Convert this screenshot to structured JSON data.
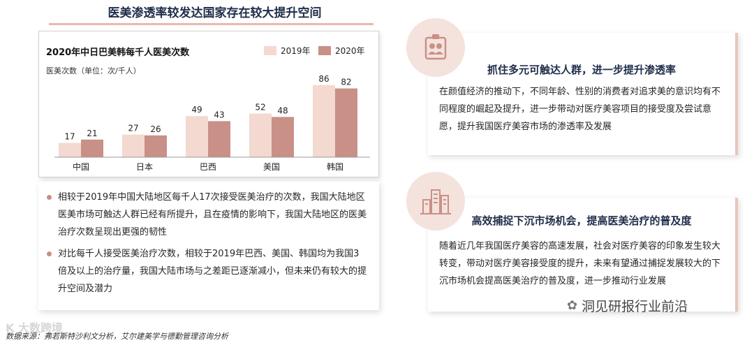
{
  "page": {
    "title": "医美渗透率较发达国家存在较大提升空间",
    "source": "数据来源：弗若斯特沙利文分析，艾尔建美学与德勤管理咨询分析",
    "watermark_left": "K 大数跨境",
    "wechat_label": "洞见研报行业前沿"
  },
  "chart_data": {
    "type": "bar",
    "title": "2020年中日巴美韩每千人医美次数",
    "ylabel": "医美次数（单位：次/千人）",
    "categories": [
      "中国",
      "日本",
      "巴西",
      "美国",
      "韩国"
    ],
    "series": [
      {
        "name": "2019年",
        "values": [
          17,
          27,
          49,
          52,
          86
        ],
        "color": "#f3d9d0"
      },
      {
        "name": "2020年",
        "values": [
          21,
          26,
          43,
          48,
          82
        ],
        "color": "#c99088"
      }
    ],
    "ylim": [
      0,
      90
    ],
    "legend": "top-right",
    "grid": false
  },
  "notes": [
    "相较于2019年中国大陆地区每千人17次接受医美治疗的次数，我国大陆地区医美市场可触达人群已经有所提升，且在疫情的影响下，我国大陆地区的医美治疗次数呈现出更强的韧性",
    "对比每千人接受医美治疗次数，相较于2019年巴西、美国、韩国均为我国3倍及以上的治疗量，我国大陆市场与之差距已逐渐减小，但未来仍有较大的提升空间及潜力"
  ],
  "panels": [
    {
      "heading": "抓住多元可触达人群，进一步提升渗透率",
      "body": "在颜值经济的推动下，不同年龄、性别的消费者对追求美的意识均有不同程度的崛起及提升，进一步带动对医疗美容项目的接受度及尝试意愿，提升我国医疗美容市场的渗透率及发展",
      "icon": "people-badge-icon"
    },
    {
      "heading": "高效捕捉下沉市场机会，提高医美治疗的普及度",
      "body": "随着近几年我国医疗美容的高速发展，社会对医疗美容的印象发生较大转变，带动对医疗美容接受度的提升，未来有望通过捕捉发展较大的下沉市场机会提高医美治疗的普及度，进一步推动行业发展",
      "icon": "city-buildings-icon"
    }
  ],
  "colors": {
    "accent": "#c99088",
    "accent_light": "#f3d9d0",
    "icon_bg": "#f4e2dc",
    "title": "#1f2d4a"
  }
}
